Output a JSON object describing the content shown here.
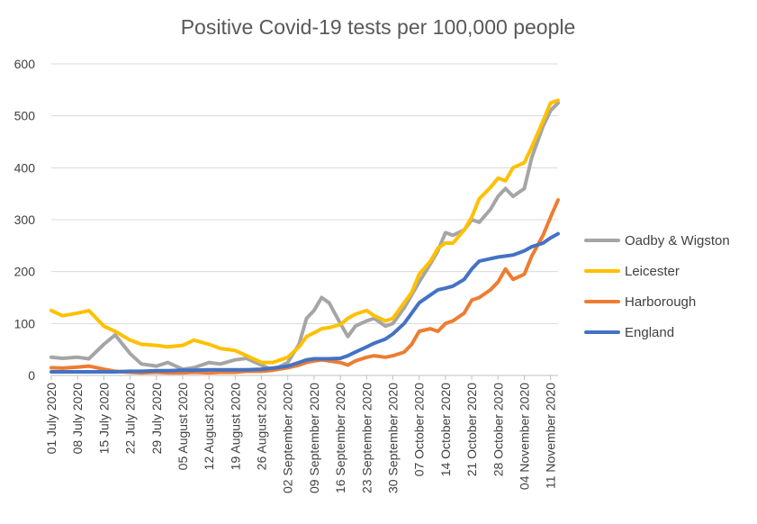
{
  "chart_data": {
    "type": "line",
    "title": "Positive Covid-19 tests per 100,000 people",
    "xlabel": "",
    "ylabel": "",
    "ylim": [
      0,
      600
    ],
    "yticks": [
      0,
      100,
      200,
      300,
      400,
      500,
      600
    ],
    "grid": true,
    "legend_position": "right",
    "x_tick_labels": [
      "01 July 2020",
      "08 July 2020",
      "15 July 2020",
      "22 July 2020",
      "29 July 2020",
      "05 August 2020",
      "12 August 2020",
      "19 August 2020",
      "26 August 2020",
      "02 September 2020",
      "09 September 2020",
      "16 September 2020",
      "23 September 2020",
      "30 September 2020",
      "07 October 2020",
      "14 October 2020",
      "21 October 2020",
      "28 October 2020",
      "04 November 2020",
      "11 November 2020"
    ],
    "x": [
      "01 July 2020",
      "04 July 2020",
      "08 July 2020",
      "11 July 2020",
      "15 July 2020",
      "18 July 2020",
      "22 July 2020",
      "25 July 2020",
      "29 July 2020",
      "01 August 2020",
      "05 August 2020",
      "08 August 2020",
      "12 August 2020",
      "15 August 2020",
      "19 August 2020",
      "22 August 2020",
      "26 August 2020",
      "29 August 2020",
      "02 September 2020",
      "05 September 2020",
      "07 September 2020",
      "09 September 2020",
      "11 September 2020",
      "13 September 2020",
      "16 September 2020",
      "18 September 2020",
      "20 September 2020",
      "23 September 2020",
      "25 September 2020",
      "28 September 2020",
      "30 September 2020",
      "03 October 2020",
      "05 October 2020",
      "07 October 2020",
      "10 October 2020",
      "12 October 2020",
      "14 October 2020",
      "16 October 2020",
      "19 October 2020",
      "21 October 2020",
      "23 October 2020",
      "26 October 2020",
      "28 October 2020",
      "30 October 2020",
      "01 November 2020",
      "04 November 2020",
      "06 November 2020",
      "09 November 2020",
      "11 November 2020",
      "13 November 2020"
    ],
    "series": [
      {
        "name": "Oadby & Wigston",
        "color": "#a5a5a5",
        "values": [
          35,
          33,
          35,
          32,
          60,
          78,
          42,
          22,
          18,
          25,
          12,
          15,
          25,
          22,
          30,
          33,
          20,
          10,
          25,
          60,
          110,
          125,
          150,
          140,
          100,
          75,
          95,
          105,
          110,
          95,
          100,
          130,
          155,
          180,
          215,
          240,
          275,
          270,
          280,
          300,
          295,
          320,
          345,
          360,
          345,
          360,
          420,
          480,
          510,
          525
        ]
      },
      {
        "name": "Leicester",
        "color": "#ffc000",
        "values": [
          125,
          115,
          120,
          125,
          95,
          85,
          68,
          60,
          58,
          55,
          58,
          68,
          60,
          52,
          48,
          38,
          25,
          25,
          35,
          55,
          75,
          82,
          90,
          92,
          98,
          110,
          118,
          125,
          115,
          105,
          110,
          140,
          160,
          195,
          220,
          245,
          255,
          255,
          280,
          305,
          340,
          362,
          380,
          375,
          400,
          410,
          440,
          490,
          525,
          530
        ]
      },
      {
        "name": "Harborough",
        "color": "#ed7d31",
        "values": [
          15,
          14,
          16,
          18,
          12,
          8,
          6,
          5,
          6,
          5,
          5,
          6,
          5,
          6,
          6,
          8,
          8,
          10,
          15,
          20,
          25,
          28,
          30,
          28,
          25,
          20,
          28,
          35,
          38,
          35,
          38,
          45,
          60,
          85,
          90,
          85,
          100,
          105,
          120,
          145,
          150,
          165,
          180,
          205,
          185,
          195,
          230,
          270,
          305,
          338
        ]
      },
      {
        "name": "England",
        "color": "#4472c4",
        "values": [
          7,
          7,
          7,
          7,
          7,
          7,
          8,
          8,
          9,
          9,
          10,
          10,
          11,
          11,
          11,
          11,
          12,
          14,
          18,
          25,
          30,
          32,
          32,
          32,
          33,
          38,
          45,
          55,
          62,
          70,
          80,
          100,
          120,
          140,
          155,
          165,
          168,
          172,
          185,
          205,
          220,
          225,
          228,
          230,
          232,
          240,
          248,
          255,
          265,
          273
        ]
      }
    ]
  }
}
